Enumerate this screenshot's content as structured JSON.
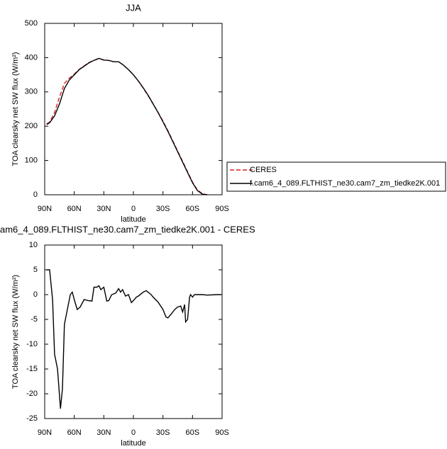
{
  "chart_data": [
    {
      "type": "line",
      "title": "JJA",
      "xlabel": "latitude",
      "ylabel": "TOA clearsky net SW flux (W/m²)",
      "xlim": [
        90,
        -90
      ],
      "xticks": [
        {
          "value": 90,
          "label": "90N"
        },
        {
          "value": 60,
          "label": "60N"
        },
        {
          "value": 30,
          "label": "30N"
        },
        {
          "value": 0,
          "label": "0"
        },
        {
          "value": -30,
          "label": "30S"
        },
        {
          "value": -60,
          "label": "60S"
        },
        {
          "value": -90,
          "label": "90S"
        }
      ],
      "ylim": [
        0,
        500
      ],
      "yticks": [
        0,
        100,
        200,
        300,
        400,
        500
      ],
      "legend": "right",
      "x": [
        88,
        85,
        80,
        75,
        70,
        65,
        60,
        55,
        50,
        45,
        40,
        35,
        30,
        25,
        20,
        15,
        10,
        5,
        0,
        -5,
        -10,
        -15,
        -20,
        -25,
        -30,
        -35,
        -40,
        -45,
        -50,
        -55,
        -60,
        -65,
        -70,
        -75
      ],
      "series": [
        {
          "name": "CERES",
          "color": "#d62020",
          "dash": true,
          "values": [
            207,
            212,
            240,
            285,
            325,
            340,
            352,
            366,
            376,
            386,
            392,
            397,
            393,
            392,
            388,
            388,
            378,
            365,
            350,
            332,
            311,
            289,
            265,
            241,
            215,
            187,
            157,
            127,
            97,
            67,
            37,
            14,
            3,
            0
          ]
        },
        {
          "name": "f.cam6_4_089.FLTHIST_ne30.cam7_zm_tiedke2K.001",
          "color": "#000000",
          "dash": false,
          "values": [
            205,
            210,
            230,
            265,
            310,
            335,
            350,
            365,
            375,
            385,
            392,
            398,
            393,
            392,
            388,
            388,
            378,
            365,
            350,
            332,
            312,
            290,
            265,
            240,
            213,
            185,
            155,
            125,
            95,
            65,
            35,
            12,
            2,
            0
          ]
        }
      ]
    },
    {
      "type": "line",
      "title": "am6_4_089.FLTHIST_ne30.cam7_zm_tiedke2K.001 - CERES",
      "xlabel": "latitude",
      "ylabel": "TOA clearsky net SW flux (W/m²)",
      "xlim": [
        90,
        -90
      ],
      "xticks": [
        {
          "value": 90,
          "label": "90N"
        },
        {
          "value": 60,
          "label": "60N"
        },
        {
          "value": 30,
          "label": "30N"
        },
        {
          "value": 0,
          "label": "0"
        },
        {
          "value": -30,
          "label": "30S"
        },
        {
          "value": -60,
          "label": "60S"
        },
        {
          "value": -90,
          "label": "90S"
        }
      ],
      "ylim": [
        -25,
        10
      ],
      "yticks": [
        -25,
        -20,
        -15,
        -10,
        -5,
        0,
        5,
        10
      ],
      "x": [
        88,
        85,
        82,
        80,
        77,
        74,
        72,
        70,
        67,
        64,
        62,
        60,
        57,
        54,
        50,
        46,
        42,
        40,
        37,
        35,
        33,
        30,
        27,
        25,
        22,
        18,
        15,
        13,
        11,
        8,
        5,
        2,
        0,
        -3,
        -5,
        -10,
        -13,
        -18,
        -20,
        -25,
        -30,
        -33,
        -35,
        -38,
        -42,
        -45,
        -48,
        -50,
        -52,
        -53,
        -55,
        -57,
        -58,
        -60,
        -62,
        -65,
        -70,
        -75,
        -85,
        -89
      ],
      "series": [
        {
          "color": "#000000",
          "values": [
            5,
            5,
            -1,
            -12,
            -15,
            -23,
            -19,
            -6,
            -3,
            0,
            0.5,
            -1,
            -3,
            -2.5,
            -1,
            -1.2,
            -1.3,
            1.5,
            1.5,
            1.8,
            1,
            1.5,
            -1.3,
            -1.2,
            0,
            0.3,
            1.2,
            0.5,
            1,
            -0.3,
            0,
            -1.6,
            -1.2,
            -0.5,
            -0.3,
            0.5,
            0.8,
            0,
            -0.5,
            -1.5,
            -3,
            -4.5,
            -4.7,
            -4,
            -3,
            -2.5,
            -2.3,
            -3.5,
            -2,
            -5.5,
            -5,
            -0.5,
            0,
            -0.5,
            0,
            0,
            0,
            -0.1,
            0,
            0
          ]
        }
      ]
    }
  ]
}
